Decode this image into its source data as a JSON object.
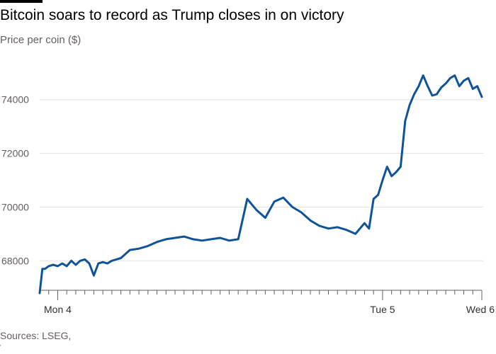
{
  "title": "Bitcoin soars to record as Trump closes in on victory",
  "source": "Sources: LSEG,",
  "footer_mark": "'",
  "colors": {
    "line": "#0f5499",
    "grid": "#e6e1da",
    "axis": "#66605c"
  },
  "chart_data": {
    "type": "line",
    "ylabel": "Price per coin ($)",
    "ylim": [
      66900,
      75600
    ],
    "yticks": [
      68000,
      70000,
      72000,
      74000
    ],
    "ytick_labels": [
      "68000",
      "70000",
      "72000",
      "74000"
    ],
    "x_range": [
      0,
      49
    ],
    "xticks": [
      {
        "x": 2,
        "label": "Mon 4"
      },
      {
        "x": 38,
        "label": "Tue 5"
      },
      {
        "x": 49,
        "label": "Wed 6"
      }
    ],
    "series": [
      {
        "x": [
          0,
          0.3,
          0.6,
          1,
          1.5,
          2,
          2.5,
          3,
          3.5,
          4,
          4.5,
          5,
          5.5,
          6,
          6.5,
          7,
          7.5,
          8,
          8.5,
          9,
          10,
          11,
          12,
          13,
          14,
          15,
          16,
          17,
          18,
          19,
          20,
          21,
          22,
          23,
          24,
          25,
          26,
          27,
          28,
          29,
          30,
          31,
          32,
          33,
          34,
          35,
          36,
          36.5,
          37,
          37.5,
          38,
          38.5,
          39,
          39.5,
          40,
          40.5,
          41,
          41.5,
          42,
          42.5,
          43,
          43.5,
          44,
          44.5,
          45,
          45.5,
          46,
          46.5,
          47,
          47.5,
          48,
          48.5,
          49
        ],
        "y": [
          66800,
          67700,
          67700,
          67800,
          67850,
          67800,
          67900,
          67800,
          68000,
          67850,
          68000,
          68050,
          67900,
          67450,
          67900,
          67950,
          67900,
          68000,
          68050,
          68100,
          68400,
          68450,
          68550,
          68700,
          68800,
          68850,
          68900,
          68800,
          68750,
          68800,
          68850,
          68750,
          68800,
          70300,
          69900,
          69600,
          70200,
          70350,
          70000,
          69800,
          69500,
          69300,
          69200,
          69250,
          69150,
          69000,
          69400,
          69200,
          70300,
          70450,
          71000,
          71500,
          71150,
          71300,
          71500,
          73200,
          73800,
          74200,
          74500,
          74900,
          74500,
          74150,
          74200,
          74450,
          74600,
          74800,
          74900,
          74500,
          74700,
          74800,
          74400,
          74500,
          74100
        ]
      }
    ]
  }
}
